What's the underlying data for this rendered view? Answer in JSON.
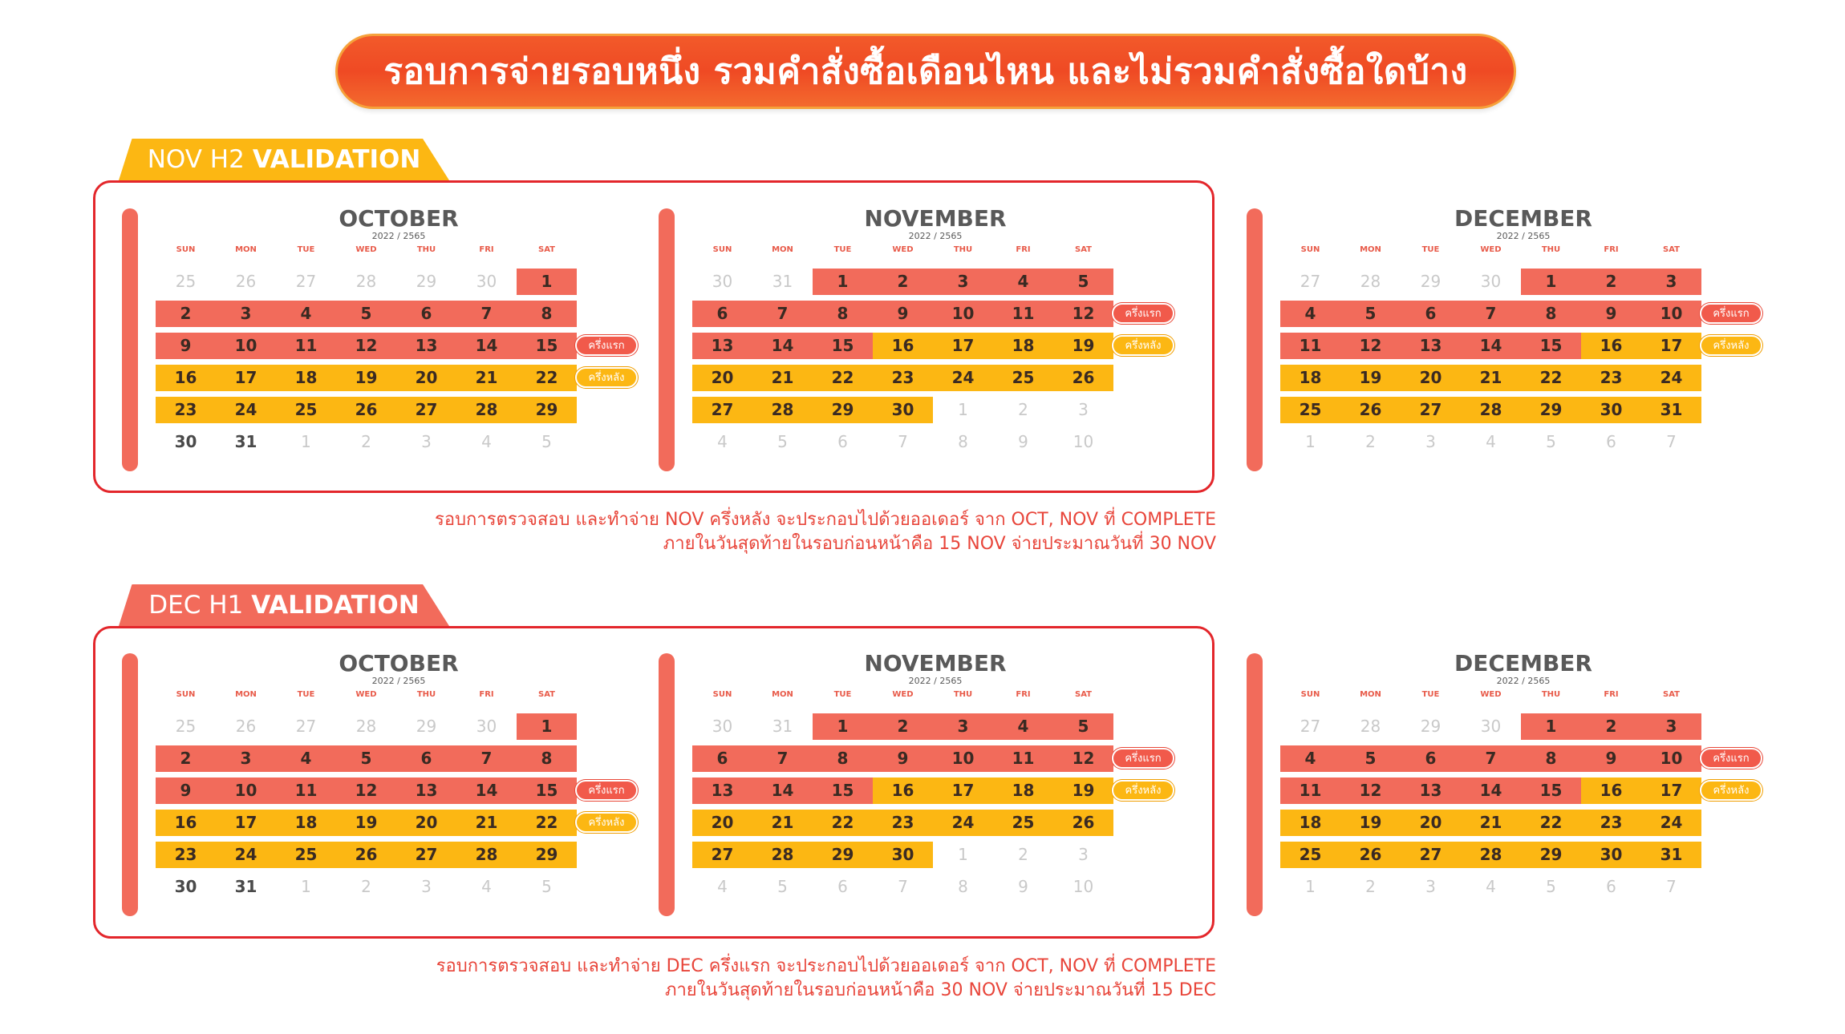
{
  "banner": {
    "title": "รอบการจ่ายรอบหนึ่ง รวมคำสั่งซื้อเดือนไหน และไม่รวมคำสั่งซื้อใดบ้าง"
  },
  "weekdays": [
    "SUN",
    "MON",
    "TUE",
    "WED",
    "THU",
    "FRI",
    "SAT"
  ],
  "pills": {
    "first_half": "ครึ่งแรก",
    "second_half": "ครึ่งหลัง"
  },
  "colors": {
    "red_highlight": "#f26b5b",
    "yellow_highlight": "#fcb713",
    "frame": "#e3262b"
  },
  "sections": [
    {
      "tab_prefix": "NOV H2",
      "tab_bold": "VALIDATION",
      "tab_color": "yellow",
      "note_line1": "รอบการตรวจสอบ และทำจ่าย NOV ครึ่งหลัง จะประกอบไปด้วยออเดอร์ จาก OCT, NOV ที่ COMPLETE",
      "note_line2": "ภายในวันสุดท้ายในรอบก่อนหน้าคือ 15 NOV จ่ายประมาณวันที่ 30 NOV"
    },
    {
      "tab_prefix": "DEC H1",
      "tab_bold": "VALIDATION",
      "tab_color": "coral",
      "note_line1": "รอบการตรวจสอบ และทำจ่าย DEC ครึ่งแรก จะประกอบไปด้วยออเดอร์ จาก OCT, NOV ที่ COMPLETE",
      "note_line2": "ภายในวันสุดท้ายในรอบก่อนหน้าคือ 30 NOV จ่ายประมาณวันที่ 15 DEC"
    }
  ],
  "months": [
    {
      "name": "OCTOBER",
      "year": "2022 / 2565",
      "rows": [
        {
          "days": [
            {
              "d": "25",
              "s": "m"
            },
            {
              "d": "26",
              "s": "m"
            },
            {
              "d": "27",
              "s": "m"
            },
            {
              "d": "28",
              "s": "m"
            },
            {
              "d": "29",
              "s": "m"
            },
            {
              "d": "30",
              "s": "m"
            },
            {
              "d": "1",
              "s": "r"
            }
          ],
          "pill": ""
        },
        {
          "days": [
            {
              "d": "2",
              "s": "r"
            },
            {
              "d": "3",
              "s": "r"
            },
            {
              "d": "4",
              "s": "r"
            },
            {
              "d": "5",
              "s": "r"
            },
            {
              "d": "6",
              "s": "r"
            },
            {
              "d": "7",
              "s": "r"
            },
            {
              "d": "8",
              "s": "r"
            }
          ],
          "pill": ""
        },
        {
          "days": [
            {
              "d": "9",
              "s": "r"
            },
            {
              "d": "10",
              "s": "r"
            },
            {
              "d": "11",
              "s": "r"
            },
            {
              "d": "12",
              "s": "r"
            },
            {
              "d": "13",
              "s": "r"
            },
            {
              "d": "14",
              "s": "r"
            },
            {
              "d": "15",
              "s": "r"
            }
          ],
          "pill": "first_half"
        },
        {
          "days": [
            {
              "d": "16",
              "s": "y"
            },
            {
              "d": "17",
              "s": "y"
            },
            {
              "d": "18",
              "s": "y"
            },
            {
              "d": "19",
              "s": "y"
            },
            {
              "d": "20",
              "s": "y"
            },
            {
              "d": "21",
              "s": "y"
            },
            {
              "d": "22",
              "s": "y"
            }
          ],
          "pill": "second_half"
        },
        {
          "days": [
            {
              "d": "23",
              "s": "y"
            },
            {
              "d": "24",
              "s": "y"
            },
            {
              "d": "25",
              "s": "y"
            },
            {
              "d": "26",
              "s": "y"
            },
            {
              "d": "27",
              "s": "y"
            },
            {
              "d": "28",
              "s": "y"
            },
            {
              "d": "29",
              "s": "y"
            }
          ],
          "pill": ""
        },
        {
          "days": [
            {
              "d": "30",
              "s": "n"
            },
            {
              "d": "31",
              "s": "n"
            },
            {
              "d": "1",
              "s": "m"
            },
            {
              "d": "2",
              "s": "m"
            },
            {
              "d": "3",
              "s": "m"
            },
            {
              "d": "4",
              "s": "m"
            },
            {
              "d": "5",
              "s": "m"
            }
          ],
          "pill": ""
        }
      ]
    },
    {
      "name": "NOVEMBER",
      "year": "2022 / 2565",
      "rows": [
        {
          "days": [
            {
              "d": "30",
              "s": "m"
            },
            {
              "d": "31",
              "s": "m"
            },
            {
              "d": "1",
              "s": "r"
            },
            {
              "d": "2",
              "s": "r"
            },
            {
              "d": "3",
              "s": "r"
            },
            {
              "d": "4",
              "s": "r"
            },
            {
              "d": "5",
              "s": "r"
            }
          ],
          "pill": ""
        },
        {
          "days": [
            {
              "d": "6",
              "s": "r"
            },
            {
              "d": "7",
              "s": "r"
            },
            {
              "d": "8",
              "s": "r"
            },
            {
              "d": "9",
              "s": "r"
            },
            {
              "d": "10",
              "s": "r"
            },
            {
              "d": "11",
              "s": "r"
            },
            {
              "d": "12",
              "s": "r"
            }
          ],
          "pill": "first_half"
        },
        {
          "days": [
            {
              "d": "13",
              "s": "r"
            },
            {
              "d": "14",
              "s": "r"
            },
            {
              "d": "15",
              "s": "r"
            },
            {
              "d": "16",
              "s": "y"
            },
            {
              "d": "17",
              "s": "y"
            },
            {
              "d": "18",
              "s": "y"
            },
            {
              "d": "19",
              "s": "y"
            }
          ],
          "pill": "second_half"
        },
        {
          "days": [
            {
              "d": "20",
              "s": "y"
            },
            {
              "d": "21",
              "s": "y"
            },
            {
              "d": "22",
              "s": "y"
            },
            {
              "d": "23",
              "s": "y"
            },
            {
              "d": "24",
              "s": "y"
            },
            {
              "d": "25",
              "s": "y"
            },
            {
              "d": "26",
              "s": "y"
            }
          ],
          "pill": ""
        },
        {
          "days": [
            {
              "d": "27",
              "s": "y"
            },
            {
              "d": "28",
              "s": "y"
            },
            {
              "d": "29",
              "s": "y"
            },
            {
              "d": "30",
              "s": "y"
            },
            {
              "d": "1",
              "s": "m"
            },
            {
              "d": "2",
              "s": "m"
            },
            {
              "d": "3",
              "s": "m"
            }
          ],
          "pill": ""
        },
        {
          "days": [
            {
              "d": "4",
              "s": "m"
            },
            {
              "d": "5",
              "s": "m"
            },
            {
              "d": "6",
              "s": "m"
            },
            {
              "d": "7",
              "s": "m"
            },
            {
              "d": "8",
              "s": "m"
            },
            {
              "d": "9",
              "s": "m"
            },
            {
              "d": "10",
              "s": "m"
            }
          ],
          "pill": ""
        }
      ]
    },
    {
      "name": "DECEMBER",
      "year": "2022 / 2565",
      "rows": [
        {
          "days": [
            {
              "d": "27",
              "s": "m"
            },
            {
              "d": "28",
              "s": "m"
            },
            {
              "d": "29",
              "s": "m"
            },
            {
              "d": "30",
              "s": "m"
            },
            {
              "d": "1",
              "s": "r"
            },
            {
              "d": "2",
              "s": "r"
            },
            {
              "d": "3",
              "s": "r"
            }
          ],
          "pill": ""
        },
        {
          "days": [
            {
              "d": "4",
              "s": "r"
            },
            {
              "d": "5",
              "s": "r"
            },
            {
              "d": "6",
              "s": "r"
            },
            {
              "d": "7",
              "s": "r"
            },
            {
              "d": "8",
              "s": "r"
            },
            {
              "d": "9",
              "s": "r"
            },
            {
              "d": "10",
              "s": "r"
            }
          ],
          "pill": "first_half"
        },
        {
          "days": [
            {
              "d": "11",
              "s": "r"
            },
            {
              "d": "12",
              "s": "r"
            },
            {
              "d": "13",
              "s": "r"
            },
            {
              "d": "14",
              "s": "r"
            },
            {
              "d": "15",
              "s": "r"
            },
            {
              "d": "16",
              "s": "y"
            },
            {
              "d": "17",
              "s": "y"
            }
          ],
          "pill": "second_half"
        },
        {
          "days": [
            {
              "d": "18",
              "s": "y"
            },
            {
              "d": "19",
              "s": "y"
            },
            {
              "d": "20",
              "s": "y"
            },
            {
              "d": "21",
              "s": "y"
            },
            {
              "d": "22",
              "s": "y"
            },
            {
              "d": "23",
              "s": "y"
            },
            {
              "d": "24",
              "s": "y"
            }
          ],
          "pill": ""
        },
        {
          "days": [
            {
              "d": "25",
              "s": "y"
            },
            {
              "d": "26",
              "s": "y"
            },
            {
              "d": "27",
              "s": "y"
            },
            {
              "d": "28",
              "s": "y"
            },
            {
              "d": "29",
              "s": "y"
            },
            {
              "d": "30",
              "s": "y"
            },
            {
              "d": "31",
              "s": "y"
            }
          ],
          "pill": ""
        },
        {
          "days": [
            {
              "d": "1",
              "s": "m"
            },
            {
              "d": "2",
              "s": "m"
            },
            {
              "d": "3",
              "s": "m"
            },
            {
              "d": "4",
              "s": "m"
            },
            {
              "d": "5",
              "s": "m"
            },
            {
              "d": "6",
              "s": "m"
            },
            {
              "d": "7",
              "s": "m"
            }
          ],
          "pill": ""
        }
      ]
    }
  ]
}
